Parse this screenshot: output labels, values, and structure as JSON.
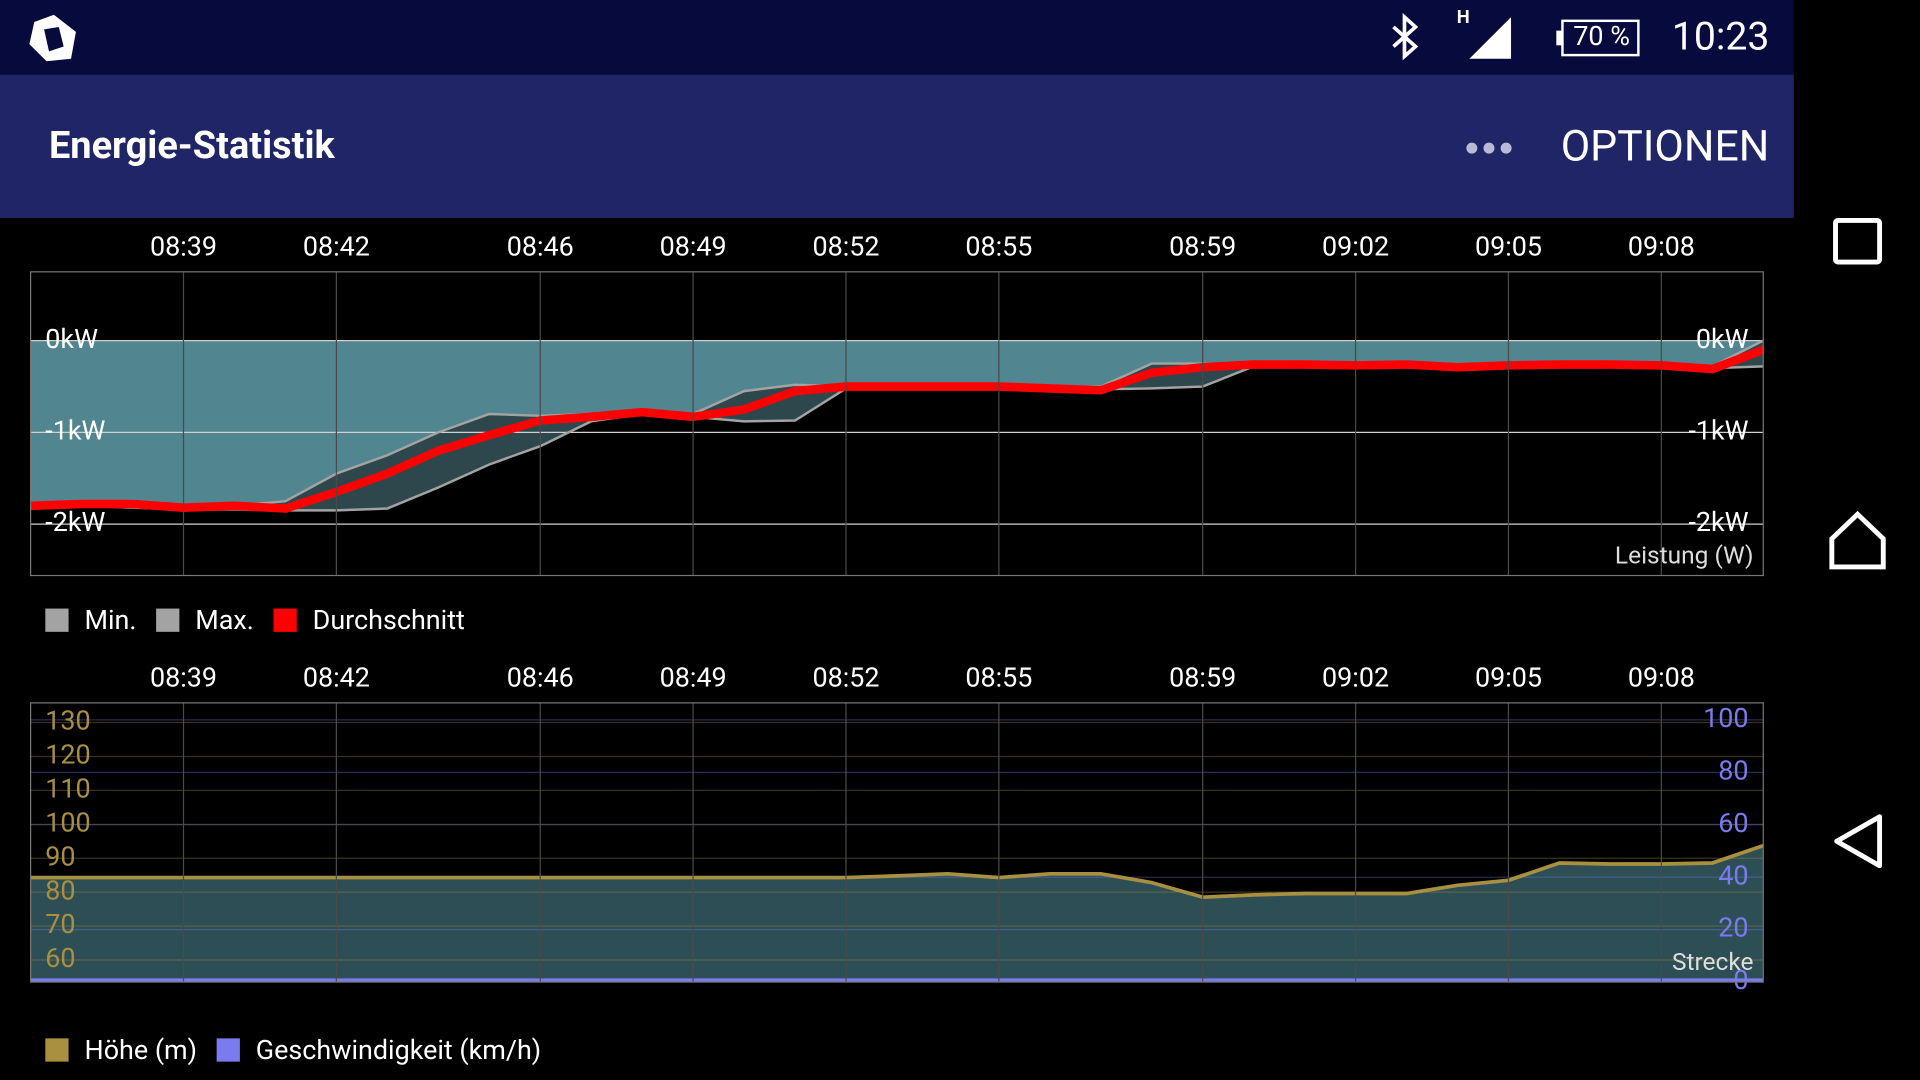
{
  "status_bar": {
    "network": "H",
    "battery": "70 %",
    "time": "10:23"
  },
  "app_bar": {
    "title": "Energie-Statistik",
    "menu": "OPTIONEN"
  },
  "chart_data": [
    {
      "type": "range-line",
      "axis_label": "Leistung (W)",
      "xlim": [
        "08:36",
        "09:10"
      ],
      "xticks": [
        "08:39",
        "08:42",
        "08:46",
        "08:49",
        "08:52",
        "08:55",
        "08:59",
        "09:02",
        "09:05",
        "09:08"
      ],
      "ylim": [
        -2.56,
        0.75
      ],
      "yticks": [
        {
          "value": 0,
          "label": "0kW"
        },
        {
          "value": -1,
          "label": "-1kW"
        },
        {
          "value": -2,
          "label": "-2kW"
        }
      ],
      "grid": true,
      "area_color": "#51858f",
      "band_color": "#2d474c",
      "x": [
        "08:36",
        "08:37",
        "08:38",
        "08:39",
        "08:40",
        "08:41",
        "08:42",
        "08:43",
        "08:44",
        "08:45",
        "08:46",
        "08:47",
        "08:48",
        "08:49",
        "08:50",
        "08:51",
        "08:52",
        "08:53",
        "08:54",
        "08:55",
        "08:56",
        "08:57",
        "08:58",
        "08:59",
        "09:00",
        "09:01",
        "09:02",
        "09:03",
        "09:04",
        "09:05",
        "09:06",
        "09:07",
        "09:08",
        "09:09",
        "09:10"
      ],
      "series": [
        {
          "name": "Min.",
          "color": "#a3a3a3",
          "values": [
            -1.8,
            -1.8,
            -1.82,
            -1.84,
            -1.84,
            -1.85,
            -1.85,
            -1.83,
            -1.6,
            -1.35,
            -1.15,
            -0.88,
            -0.8,
            -0.83,
            -0.88,
            -0.87,
            -0.52,
            -0.5,
            -0.5,
            -0.5,
            -0.55,
            -0.53,
            -0.52,
            -0.5,
            -0.28,
            -0.28,
            -0.28,
            -0.28,
            -0.29,
            -0.28,
            -0.28,
            -0.28,
            -0.28,
            -0.3,
            -0.28
          ]
        },
        {
          "name": "Max.",
          "color": "#a3a3a3",
          "values": [
            -1.8,
            -1.78,
            -1.78,
            -1.8,
            -1.8,
            -1.75,
            -1.45,
            -1.25,
            -1.0,
            -0.8,
            -0.82,
            -0.8,
            -0.77,
            -0.8,
            -0.55,
            -0.48,
            -0.5,
            -0.5,
            -0.5,
            -0.5,
            -0.5,
            -0.5,
            -0.25,
            -0.25,
            -0.26,
            -0.26,
            -0.26,
            -0.26,
            -0.27,
            -0.26,
            -0.26,
            -0.26,
            -0.26,
            -0.28,
            0
          ]
        },
        {
          "name": "Durchschnitt",
          "color": "#ff0000",
          "values": [
            -1.8,
            -1.78,
            -1.78,
            -1.82,
            -1.8,
            -1.83,
            -1.65,
            -1.45,
            -1.2,
            -1.03,
            -0.87,
            -0.83,
            -0.78,
            -0.83,
            -0.75,
            -0.55,
            -0.5,
            -0.5,
            -0.5,
            -0.5,
            -0.52,
            -0.54,
            -0.35,
            -0.29,
            -0.26,
            -0.26,
            -0.27,
            -0.26,
            -0.29,
            -0.27,
            -0.26,
            -0.26,
            -0.27,
            -0.31,
            -0.1
          ]
        }
      ]
    },
    {
      "type": "area",
      "axis_label": "Strecke",
      "xlim": [
        "08:36",
        "09:10"
      ],
      "xticks": [
        "08:39",
        "08:42",
        "08:46",
        "08:49",
        "08:52",
        "08:55",
        "08:59",
        "09:02",
        "09:05",
        "09:08"
      ],
      "ylim": [
        53.5,
        135.8
      ],
      "yticks": [
        60,
        70,
        80,
        90,
        100,
        110,
        120,
        130
      ],
      "y2lim": [
        0,
        106.5
      ],
      "y2ticks": [
        0,
        20,
        40,
        60,
        80,
        100
      ],
      "grid": true,
      "area_color": "#2d4e55",
      "x": [
        "08:36",
        "08:37",
        "08:38",
        "08:39",
        "08:40",
        "08:41",
        "08:42",
        "08:43",
        "08:44",
        "08:45",
        "08:46",
        "08:47",
        "08:48",
        "08:49",
        "08:50",
        "08:51",
        "08:52",
        "08:53",
        "08:54",
        "08:55",
        "08:56",
        "08:57",
        "08:58",
        "08:59",
        "09:00",
        "09:01",
        "09:02",
        "09:03",
        "09:04",
        "09:05",
        "09:06",
        "09:07",
        "09:08",
        "09:09",
        "09:10"
      ],
      "series": [
        {
          "name": "Höhe (m)",
          "color": "#a89040",
          "values": [
            84.3,
            84.3,
            84.3,
            84.3,
            84.3,
            84.3,
            84.3,
            84.3,
            84.3,
            84.3,
            84.3,
            84.3,
            84.3,
            84.3,
            84.3,
            84.3,
            84.3,
            84.8,
            85.4,
            84.3,
            85.4,
            85.4,
            82.8,
            78.5,
            79.2,
            79.6,
            79.6,
            79.6,
            82,
            83.5,
            88.6,
            88.3,
            88.3,
            88.6,
            93.7
          ]
        },
        {
          "name": "Geschwindigkeit (km/h)",
          "color": "#7b7bf0",
          "axis": "y2",
          "values": [
            0,
            0,
            0,
            0,
            0,
            0,
            0,
            0,
            0,
            0,
            0,
            0,
            0,
            0,
            0,
            0,
            0,
            0,
            0,
            0,
            0,
            0,
            0,
            0,
            0,
            0,
            0,
            0,
            0,
            0,
            0,
            0,
            0,
            0,
            0
          ]
        }
      ]
    }
  ]
}
